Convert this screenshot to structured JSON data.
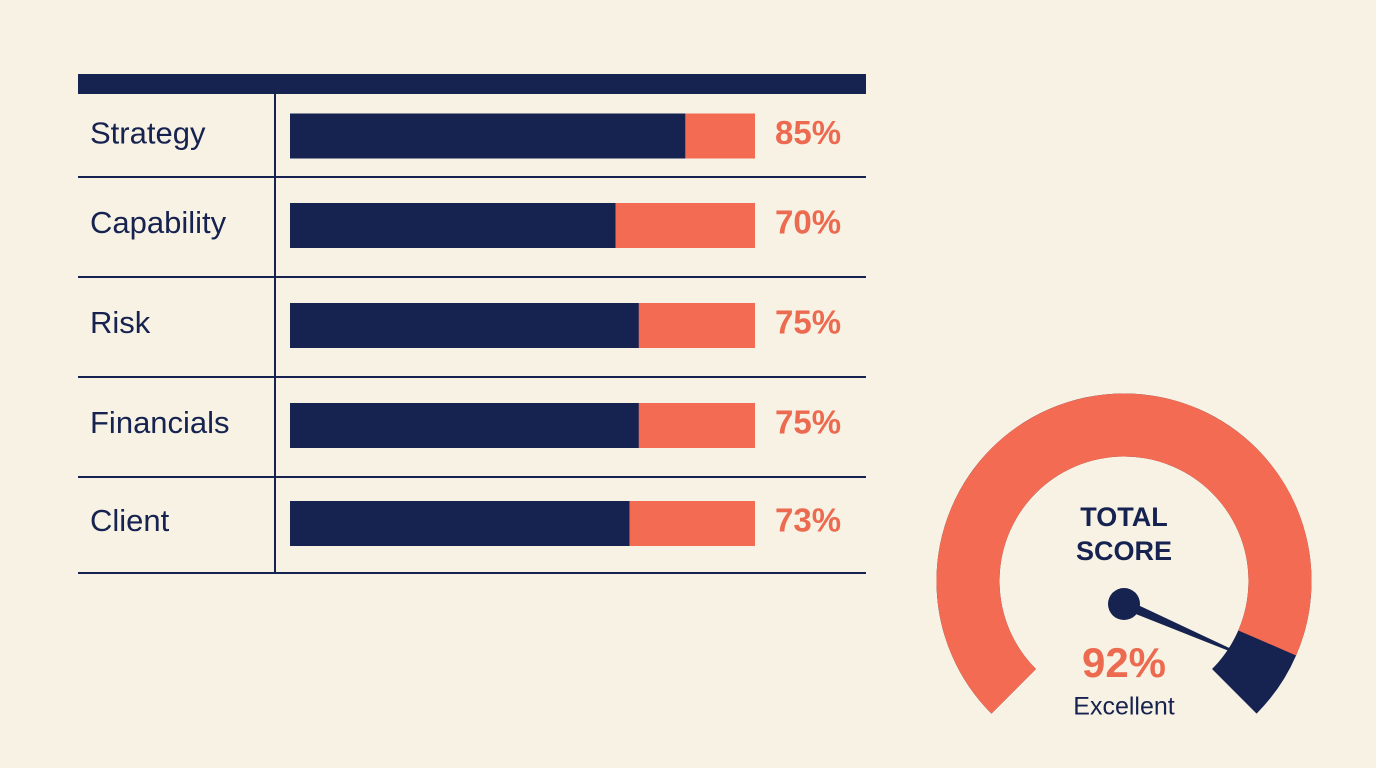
{
  "chart_data": [
    {
      "type": "bar",
      "categories": [
        "Strategy",
        "Capability",
        "Risk",
        "Financials",
        "Client"
      ],
      "values": [
        85,
        70,
        75,
        75,
        73
      ],
      "value_labels": [
        "85%",
        "70%",
        "75%",
        "75%",
        "73%"
      ],
      "xlim": [
        0,
        100
      ],
      "color": "#16224f",
      "track_color": "#f26b52",
      "label_color": "#ec6a4f"
    },
    {
      "type": "gauge",
      "title": "TOTAL SCORE",
      "value": 92,
      "value_label": "92%",
      "label": "Excellent",
      "ylim": [
        0,
        100
      ],
      "color": "#f26b52",
      "track_color": "#16224f"
    }
  ]
}
